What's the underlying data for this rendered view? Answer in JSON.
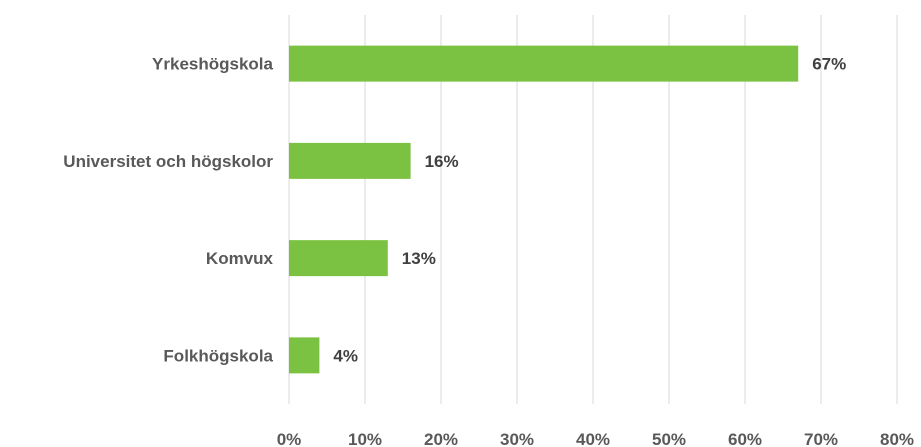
{
  "chart_data": {
    "type": "bar",
    "orientation": "horizontal",
    "categories": [
      "Yrkeshögskola",
      "Universitet och högskolor",
      "Komvux",
      "Folkhögskola"
    ],
    "values": [
      67,
      16,
      13,
      4
    ],
    "data_labels": [
      "67%",
      "16%",
      "13%",
      "4%"
    ],
    "xlim": [
      0,
      80
    ],
    "x_ticks": [
      0,
      10,
      20,
      30,
      40,
      50,
      60,
      70,
      80
    ],
    "x_tick_labels": [
      "0%",
      "10%",
      "20%",
      "30%",
      "40%",
      "50%",
      "60%",
      "70%",
      "80%"
    ],
    "title": "",
    "xlabel": "",
    "ylabel": "",
    "grid": "vertical",
    "legend": "none",
    "colors": {
      "bar": "#7cc242",
      "grid": "#d9d9d9",
      "label": "#595959",
      "value_label": "#404040"
    }
  }
}
